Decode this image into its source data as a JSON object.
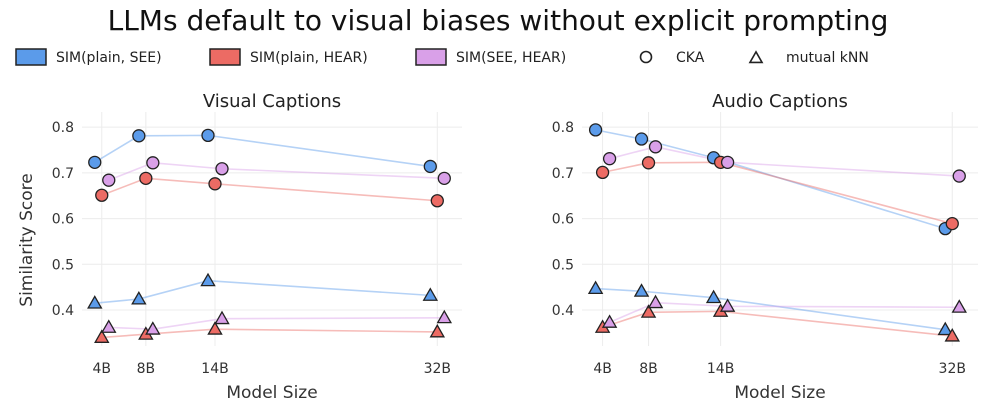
{
  "figure_title": "LLMs default to visual biases without explicit prompting",
  "legend": [
    {
      "label": "SIM(plain, SEE)",
      "marker": "box",
      "color": "#5b9bea"
    },
    {
      "label": "SIM(plain, HEAR)",
      "marker": "box",
      "color": "#ec6b64"
    },
    {
      "label": "SIM(SEE, HEAR)",
      "marker": "box",
      "color": "#d9a0e8"
    },
    {
      "label": "CKA",
      "marker": "circle"
    },
    {
      "label": "mutual kNN",
      "marker": "triangle"
    }
  ],
  "colors": {
    "see": "#5b9bea",
    "hear": "#ec6b64",
    "seehear": "#d9a0e8"
  },
  "chart_data": [
    {
      "type": "line",
      "title": "Visual Captions",
      "xlabel": "Model Size",
      "ylabel": "Similarity Score",
      "categories": [
        "4B",
        "8B",
        "14B",
        "32B"
      ],
      "x": [
        4,
        8,
        14,
        32
      ],
      "ylim": [
        0.33,
        0.82
      ],
      "yticks": [
        0.4,
        0.5,
        0.6,
        0.7,
        0.8
      ],
      "series": [
        {
          "name": "SIM(plain, SEE)",
          "metric": "CKA",
          "color": "see",
          "values": [
            0.723,
            0.781,
            0.782,
            0.714
          ]
        },
        {
          "name": "SIM(plain, HEAR)",
          "metric": "CKA",
          "color": "hear",
          "values": [
            0.651,
            0.688,
            0.676,
            0.639
          ]
        },
        {
          "name": "SIM(SEE, HEAR)",
          "metric": "CKA",
          "color": "seehear",
          "values": [
            0.684,
            0.722,
            0.709,
            0.688
          ]
        },
        {
          "name": "SIM(plain, SEE)",
          "metric": "mutual kNN",
          "color": "see",
          "values": [
            0.415,
            0.424,
            0.464,
            0.432
          ]
        },
        {
          "name": "SIM(plain, HEAR)",
          "metric": "mutual kNN",
          "color": "hear",
          "values": [
            0.34,
            0.347,
            0.358,
            0.352
          ]
        },
        {
          "name": "SIM(SEE, HEAR)",
          "metric": "mutual kNN",
          "color": "seehear",
          "values": [
            0.362,
            0.358,
            0.381,
            0.383
          ]
        }
      ]
    },
    {
      "type": "line",
      "title": "Audio Captions",
      "xlabel": "Model Size",
      "ylabel": "",
      "categories": [
        "4B",
        "8B",
        "14B",
        "32B"
      ],
      "x": [
        4,
        8,
        14,
        32
      ],
      "ylim": [
        0.33,
        0.82
      ],
      "yticks": [
        0.4,
        0.5,
        0.6,
        0.7,
        0.8
      ],
      "series": [
        {
          "name": "SIM(plain, SEE)",
          "metric": "CKA",
          "color": "see",
          "values": [
            0.794,
            0.774,
            0.733,
            0.578
          ]
        },
        {
          "name": "SIM(plain, HEAR)",
          "metric": "CKA",
          "color": "hear",
          "values": [
            0.701,
            0.722,
            0.723,
            0.589
          ]
        },
        {
          "name": "SIM(SEE, HEAR)",
          "metric": "CKA",
          "color": "seehear",
          "values": [
            0.731,
            0.757,
            0.723,
            0.693
          ]
        },
        {
          "name": "SIM(plain, SEE)",
          "metric": "mutual kNN",
          "color": "see",
          "values": [
            0.447,
            0.441,
            0.427,
            0.357
          ]
        },
        {
          "name": "SIM(plain, HEAR)",
          "metric": "mutual kNN",
          "color": "hear",
          "values": [
            0.362,
            0.395,
            0.397,
            0.343
          ]
        },
        {
          "name": "SIM(SEE, HEAR)",
          "metric": "mutual kNN",
          "color": "seehear",
          "values": [
            0.373,
            0.416,
            0.408,
            0.406
          ]
        }
      ]
    }
  ]
}
